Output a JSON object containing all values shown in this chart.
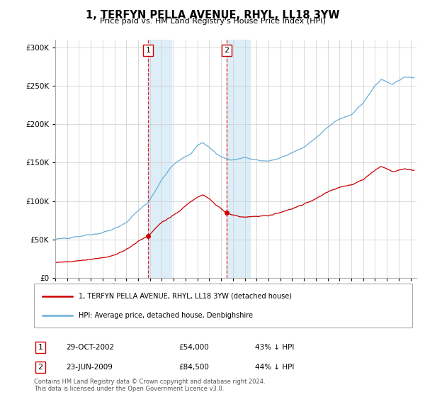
{
  "title": "1, TERFYN PELLA AVENUE, RHYL, LL18 3YW",
  "subtitle": "Price paid vs. HM Land Registry's House Price Index (HPI)",
  "legend_line1": "1, TERFYN PELLA AVENUE, RHYL, LL18 3YW (detached house)",
  "legend_line2": "HPI: Average price, detached house, Denbighshire",
  "sale1_label": "1",
  "sale1_date": "29-OCT-2002",
  "sale1_price": "£54,000",
  "sale1_hpi": "43% ↓ HPI",
  "sale2_label": "2",
  "sale2_date": "23-JUN-2009",
  "sale2_price": "£84,500",
  "sale2_hpi": "44% ↓ HPI",
  "footnote": "Contains HM Land Registry data © Crown copyright and database right 2024.\nThis data is licensed under the Open Government Licence v3.0.",
  "hpi_color": "#6baed6",
  "price_color": "#cc0000",
  "sale1_x": 2002.83,
  "sale1_y": 54000,
  "sale2_x": 2009.47,
  "sale2_y": 84500,
  "shade1_xmin": 2002.83,
  "shade1_xmax": 2004.83,
  "shade2_xmin": 2009.47,
  "shade2_xmax": 2011.47,
  "ylim": [
    0,
    310000
  ],
  "xlim_min": 1995.0,
  "xlim_max": 2025.5
}
